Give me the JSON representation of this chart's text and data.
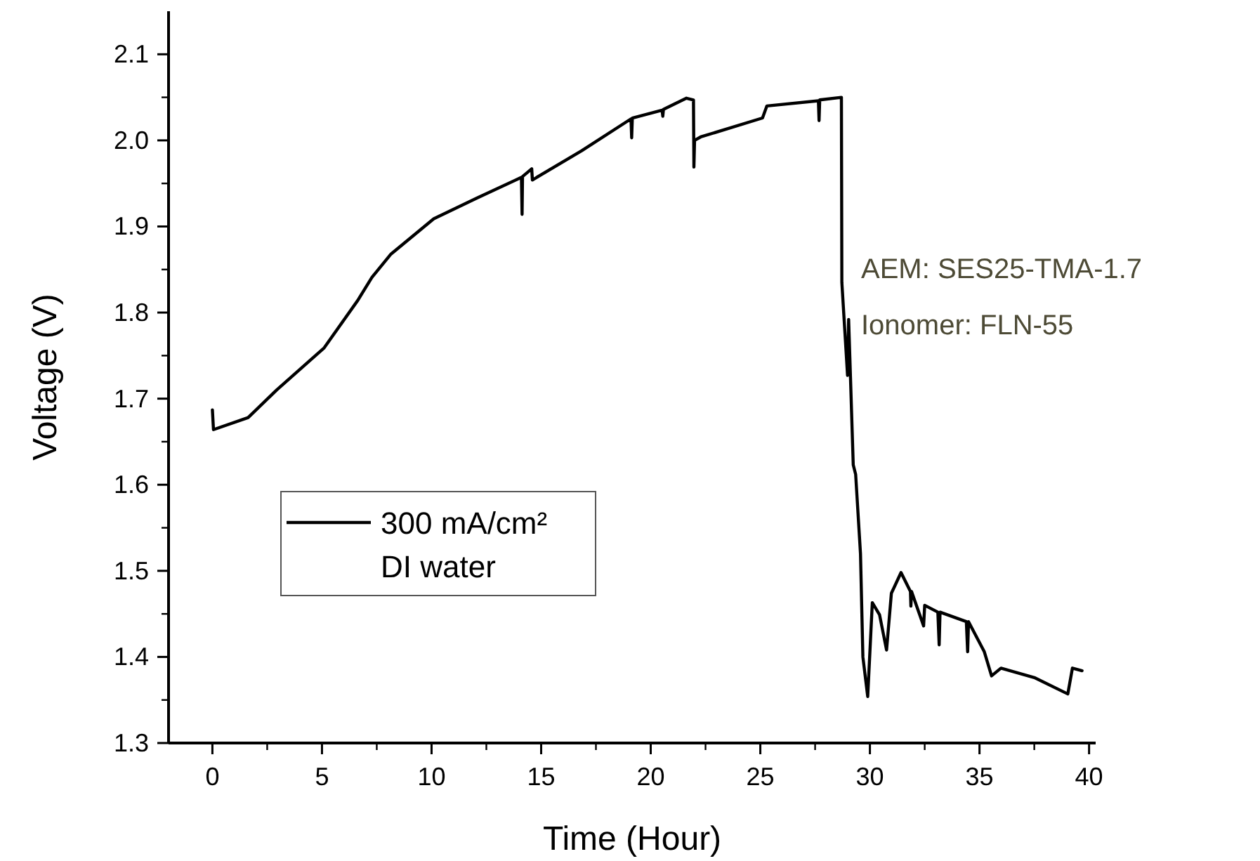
{
  "chart_data": {
    "type": "line",
    "xlabel": "Time (Hour)",
    "ylabel": "Voltage (V)",
    "xlim": [
      -2,
      40.3
    ],
    "ylim": [
      1.3,
      2.15
    ],
    "xticks": [
      0,
      5,
      10,
      15,
      20,
      25,
      30,
      35,
      40
    ],
    "yticks": [
      1.3,
      1.4,
      1.5,
      1.6,
      1.7,
      1.8,
      1.9,
      {
        "value": 2,
        "label": "2.0"
      },
      2.1
    ],
    "grid": false,
    "legend": "left",
    "line_style": "solid",
    "annotations": [
      "AEM: SES25-TMA-1.7",
      "Ionomer: FLN-55"
    ],
    "series": [
      {
        "name": "300 mA/cm²\nDI water",
        "color": "#000000",
        "x": [
          0,
          0.05,
          1.63,
          2.93,
          5.1,
          6.63,
          7.28,
          8.15,
          10.1,
          12.07,
          14.1,
          14.13,
          14.15,
          14.57,
          14.6,
          16.85,
          19.1,
          19.13,
          19.16,
          20.52,
          20.55,
          20.58,
          21.63,
          21.95,
          21.97,
          22.0,
          22.28,
          25.1,
          25.3,
          27.65,
          27.68,
          27.71,
          28.7,
          28.72,
          28.98,
          29.03,
          29.24,
          29.35,
          29.57,
          29.68,
          29.9,
          30.11,
          30.44,
          30.76,
          30.98,
          31.42,
          31.85,
          31.87,
          31.9,
          32.45,
          32.5,
          33.1,
          33.16,
          33.2,
          34.4,
          34.46,
          34.5,
          35.22,
          35.55,
          35.98,
          37.5,
          39.03,
          39.24,
          39.68
        ],
        "values": [
          1.687,
          1.664,
          1.678,
          1.71,
          1.759,
          1.814,
          1.841,
          1.868,
          1.909,
          1.933,
          1.957,
          1.914,
          1.958,
          1.967,
          1.954,
          1.988,
          2.025,
          2.003,
          2.026,
          2.035,
          2.028,
          2.036,
          2.049,
          2.047,
          1.969,
          2.0,
          2.004,
          2.026,
          2.04,
          2.046,
          2.023,
          2.047,
          2.05,
          1.835,
          1.727,
          1.792,
          1.623,
          1.612,
          1.52,
          1.4,
          1.354,
          1.463,
          1.449,
          1.408,
          1.474,
          1.498,
          1.476,
          1.459,
          1.476,
          1.436,
          1.46,
          1.452,
          1.414,
          1.452,
          1.441,
          1.406,
          1.441,
          1.406,
          1.378,
          1.387,
          1.376,
          1.357,
          1.387,
          1.384
        ]
      }
    ]
  }
}
